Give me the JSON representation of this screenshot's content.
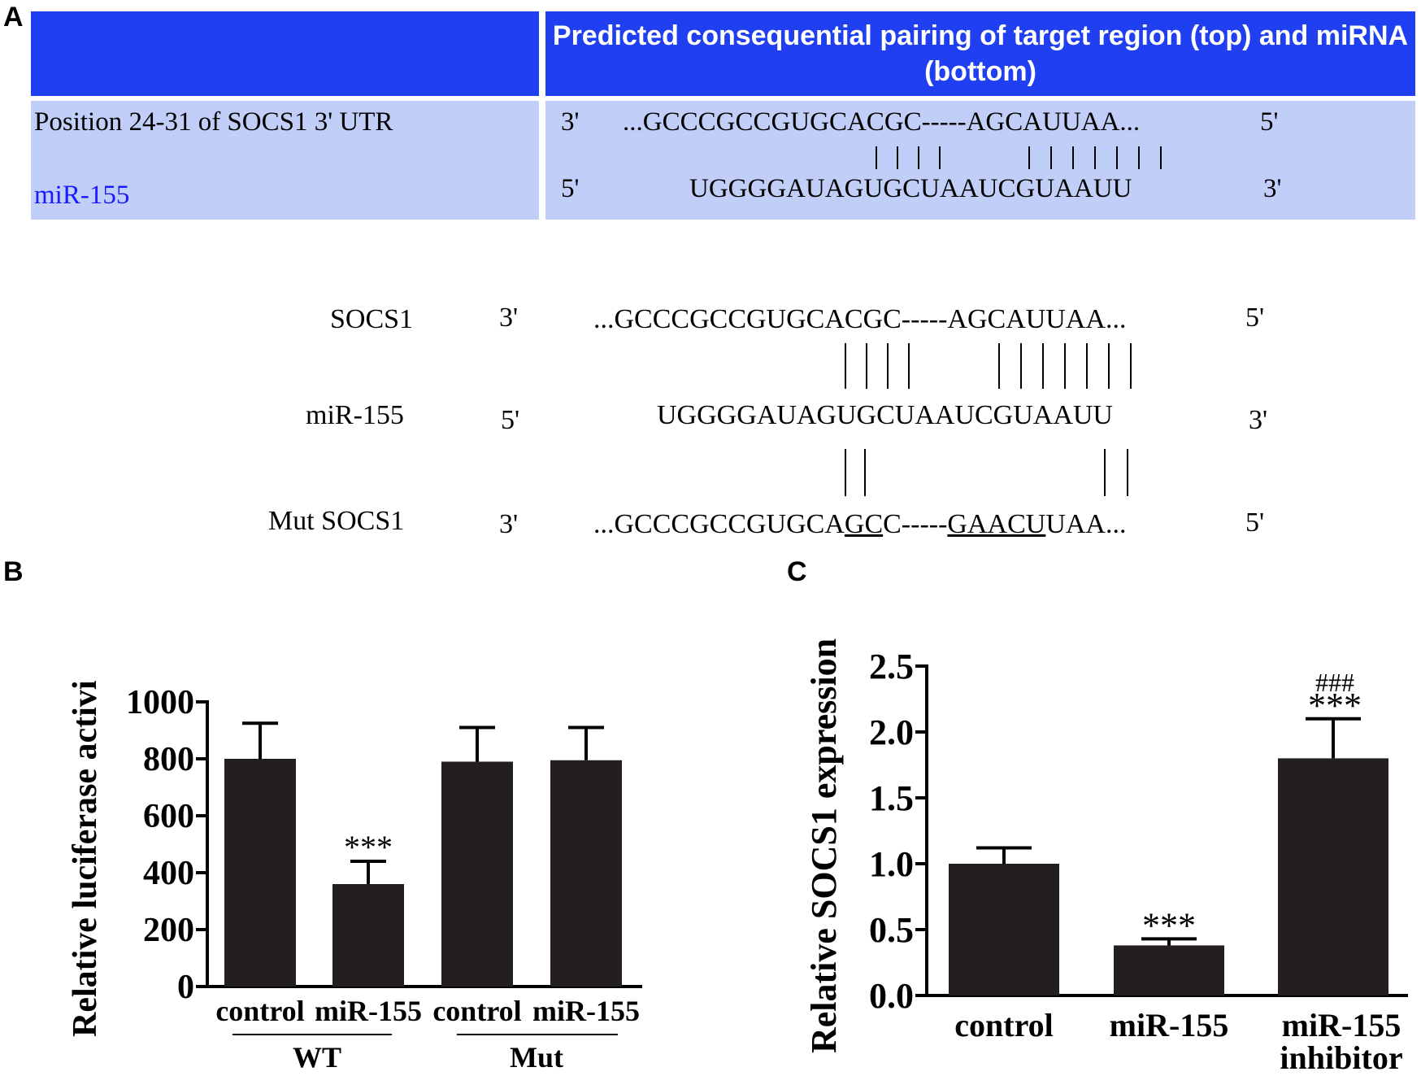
{
  "panels": {
    "a": "A",
    "b": "B",
    "c": "C"
  },
  "table": {
    "header": "Predicted consequential pairing of target region (top) and miRNA (bottom)",
    "row_label": "Position 24-31 of SOCS1 3' UTR",
    "mirna_label": "miR-155",
    "top_left_end": "3'",
    "top_seq": "...GCCCGCCGUGCACGC-----AGCAUUAA...",
    "top_right_end": "5'",
    "bottom_left_end": "5'",
    "bottom_seq": "UGGGGAUAGUGCUAAUCGUAAUU",
    "bottom_right_end": "3'"
  },
  "alignment": {
    "socs1_label": "SOCS1",
    "socs1_left": "3'",
    "socs1_seq": "...GCCCGCCGUGCACGC-----AGCAUUAA...",
    "socs1_right": "5'",
    "mir_label": "miR-155",
    "mir_left": "5'",
    "mir_seq": "UGGGGAUAGUGCUAAUCGUAAUU",
    "mir_right": "3'",
    "mut_label": "Mut SOCS1",
    "mut_left": "3'",
    "mut_seq_1": "...GCCCGCCGUGCA",
    "mut_seq_u1": "GC",
    "mut_seq_2": "C-----",
    "mut_seq_u2": "GAACU",
    "mut_seq_3": "UAA...",
    "mut_right": "5'"
  },
  "chart_data": [
    {
      "type": "bar",
      "ylabel": "Relative luciferase activi",
      "categories": [
        "control",
        "miR-155",
        "control",
        "miR-155"
      ],
      "groups": [
        "WT",
        "Mut"
      ],
      "values": [
        800,
        360,
        790,
        795
      ],
      "errors": [
        125,
        80,
        120,
        115
      ],
      "annotations": [
        "",
        "***",
        "",
        ""
      ],
      "yticks": [
        "0",
        "200",
        "400",
        "600",
        "800",
        "1000"
      ],
      "ylim": [
        0,
        1000
      ]
    },
    {
      "type": "bar",
      "ylabel": "Relative SOCS1 expression",
      "categories": [
        "control",
        "miR-155",
        "miR-155 inhibitor"
      ],
      "values": [
        1.0,
        0.38,
        1.8
      ],
      "errors": [
        0.12,
        0.05,
        0.3
      ],
      "annotations": [
        "",
        "***",
        "***"
      ],
      "annotations2": [
        "",
        "",
        "###"
      ],
      "yticks": [
        "0.0",
        "0.5",
        "1.0",
        "1.5",
        "2.0",
        "2.5"
      ],
      "ylim": [
        0,
        2.5
      ]
    }
  ]
}
